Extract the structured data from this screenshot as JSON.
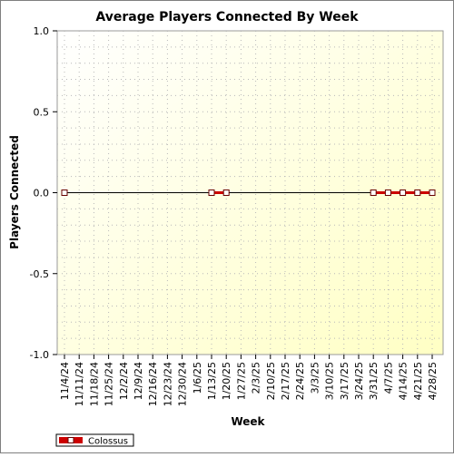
{
  "chart_data": {
    "type": "line",
    "title": "Average Players Connected By Week",
    "xlabel": "Week",
    "ylabel": "Players Connected",
    "ylim": [
      -1.0,
      1.0
    ],
    "yticks": [
      "1.0",
      "0.5",
      "0.0",
      "-0.5",
      "-1.0"
    ],
    "yticks_values": [
      1.0,
      0.5,
      0.0,
      -0.5,
      -1.0
    ],
    "categories": [
      "11/4/24",
      "11/11/24",
      "11/18/24",
      "11/25/24",
      "12/2/24",
      "12/9/24",
      "12/16/24",
      "12/23/24",
      "12/30/24",
      "1/6/25",
      "1/13/25",
      "1/20/25",
      "1/27/25",
      "2/3/25",
      "2/10/25",
      "2/17/25",
      "2/24/25",
      "3/3/25",
      "3/10/25",
      "3/17/25",
      "3/24/25",
      "3/31/25",
      "4/7/25",
      "4/14/25",
      "4/21/25",
      "4/28/25"
    ],
    "grid": true,
    "legend_position": "bottom-left",
    "series": [
      {
        "name": "Colossus",
        "color": "#cc0000",
        "points": [
          {
            "x": "11/4/24",
            "y": 0
          },
          {
            "x": "1/13/25",
            "y": 0
          },
          {
            "x": "1/20/25",
            "y": 0
          },
          {
            "x": "3/31/25",
            "y": 0
          },
          {
            "x": "4/7/25",
            "y": 0
          },
          {
            "x": "4/14/25",
            "y": 0
          },
          {
            "x": "4/21/25",
            "y": 0
          },
          {
            "x": "4/28/25",
            "y": 0
          }
        ]
      }
    ]
  }
}
